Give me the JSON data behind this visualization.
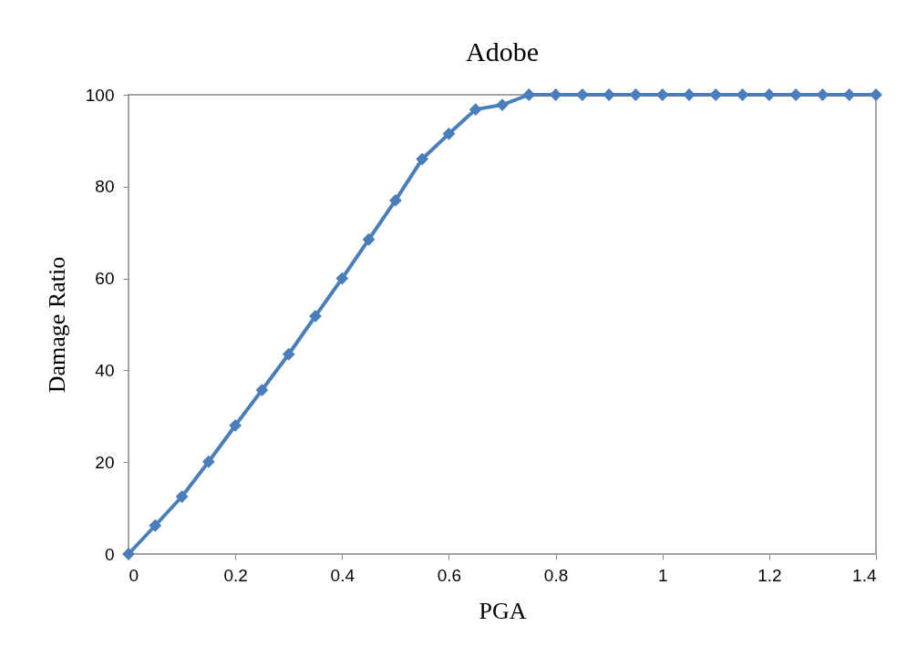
{
  "chart_data": {
    "type": "line",
    "title": "Adobe",
    "xlabel": "PGA",
    "ylabel": "Damage Ratio",
    "x": [
      0,
      0.05,
      0.1,
      0.15,
      0.2,
      0.25,
      0.3,
      0.35,
      0.4,
      0.45,
      0.5,
      0.55,
      0.6,
      0.65,
      0.7,
      0.75,
      0.8,
      0.85,
      0.9,
      0.95,
      1,
      1.05,
      1.1,
      1.15,
      1.2,
      1.25,
      1.3,
      1.35,
      1.4
    ],
    "series": [
      {
        "color": "#4a7ebb",
        "values": [
          0,
          6.2,
          12.5,
          20.1,
          28,
          35.7,
          43.5,
          51.8,
          60,
          68.5,
          77,
          86,
          91.5,
          96.8,
          97.8,
          100,
          100,
          100,
          100,
          100,
          100,
          100,
          100,
          100,
          100,
          100,
          100,
          100,
          100
        ]
      }
    ],
    "xlim": [
      0,
      1.4
    ],
    "xticks": [
      0,
      0.2,
      0.4,
      0.6,
      0.8,
      1,
      1.2,
      1.4
    ],
    "ylim": [
      0,
      100
    ],
    "yticks": [
      0,
      20,
      40,
      60,
      80,
      100
    ],
    "grid": false,
    "legend": false,
    "marker": "diamond",
    "line_style": "solid"
  }
}
